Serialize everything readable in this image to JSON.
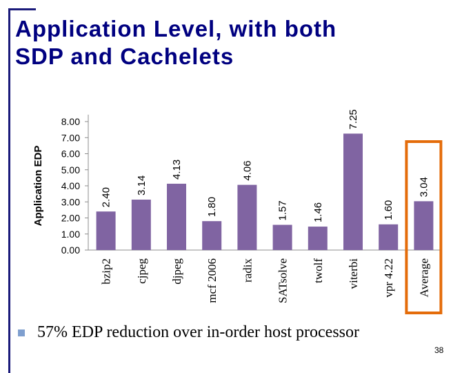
{
  "slide": {
    "title_line1": "Application Level, with both",
    "title_line2": "SDP and Cachelets",
    "bullet": "57% EDP reduction over in-order host processor",
    "page_number": "38"
  },
  "colors": {
    "title": "#000080",
    "bar": "#8064a2",
    "highlight_box": "#e46c0a",
    "bullet": "#7f9fcf"
  },
  "chart_data": {
    "type": "bar",
    "ylabel": "Application EDP",
    "xlabel": "",
    "ylim": [
      0,
      8
    ],
    "yticks": [
      "0.00",
      "1.00",
      "2.00",
      "3.00",
      "4.00",
      "5.00",
      "6.00",
      "7.00",
      "8.00"
    ],
    "categories": [
      "bzip2",
      "cjpeg",
      "djpeg",
      "mcf 2006",
      "radix",
      "SATsolve",
      "twolf",
      "viterbi",
      "vpr 4.22",
      "Average"
    ],
    "values": [
      2.4,
      3.14,
      4.13,
      1.8,
      4.06,
      1.57,
      1.46,
      7.25,
      1.6,
      3.04
    ],
    "data_labels": [
      "2.40",
      "3.14",
      "4.13",
      "1.80",
      "4.06",
      "1.57",
      "1.46",
      "7.25",
      "1.60",
      "3.04"
    ],
    "highlighted_category": "Average",
    "grid": false,
    "legend": "none"
  }
}
